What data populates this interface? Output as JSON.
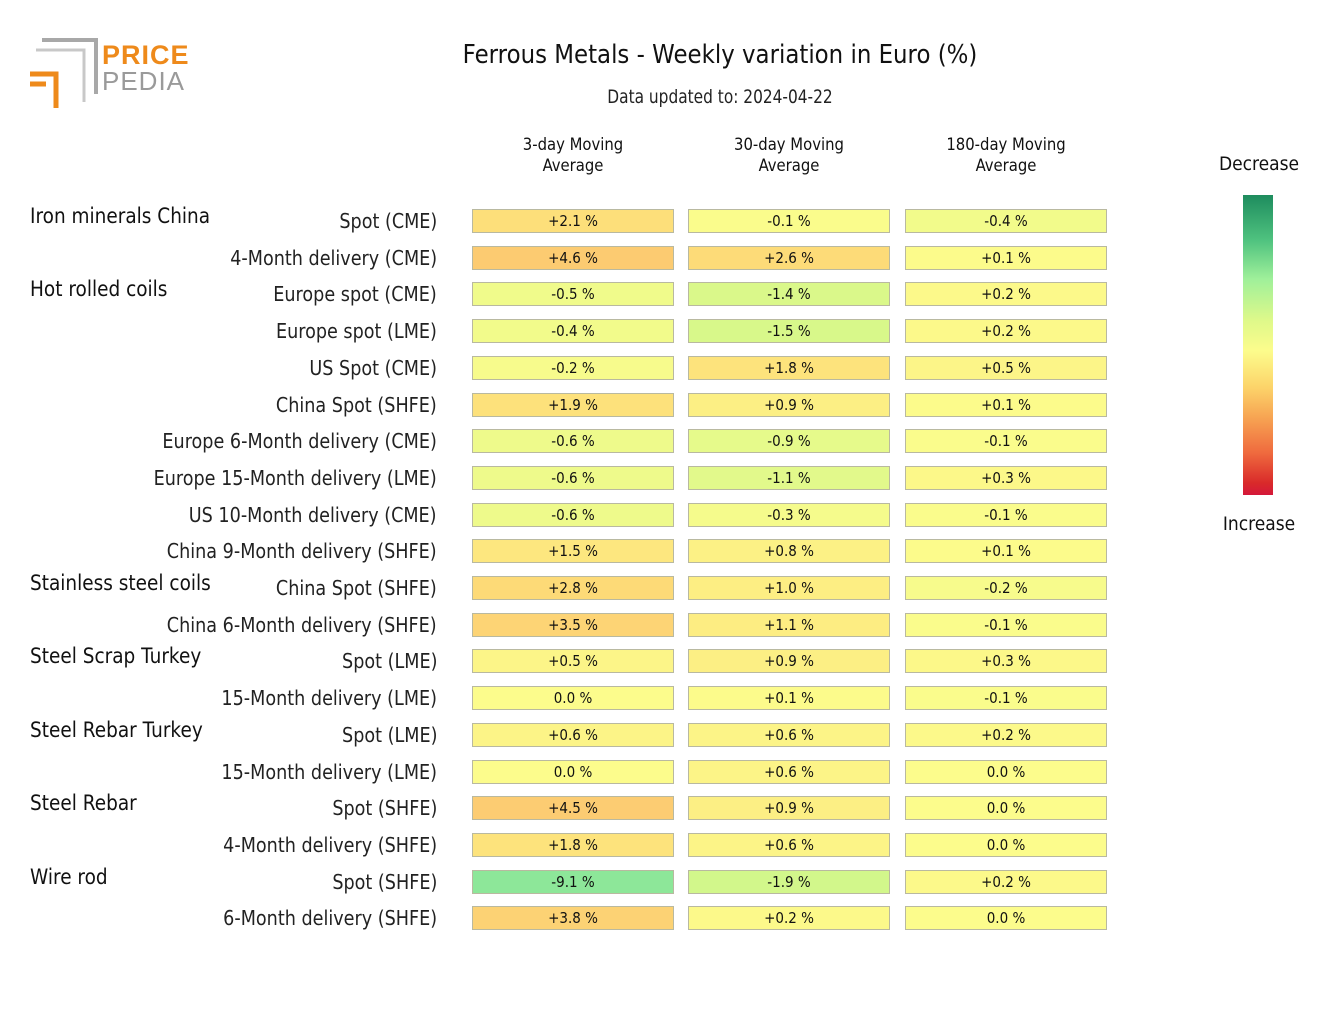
{
  "logo": {
    "line1": "PRICE",
    "line2": "PEDIA"
  },
  "chart_data": {
    "type": "heatmap",
    "title": "Ferrous Metals - Weekly variation in Euro (%)",
    "subtitle": "Data updated to: 2024-04-22",
    "columns": [
      "3-day Moving\nAverage",
      "30-day Moving\nAverage",
      "180-day Moving\nAverage"
    ],
    "legend": {
      "top": "Decrease",
      "bottom": "Increase",
      "placement": "right"
    },
    "colors": {
      "decrease": "#1e8c5e",
      "neutral": "#fcfc8c",
      "increase": "#d4183a"
    },
    "groups": [
      {
        "name": "Iron minerals China",
        "rows": [
          {
            "label": "Spot (CME)",
            "values": [
              2.1,
              -0.1,
              -0.4
            ]
          },
          {
            "label": "4-Month delivery (CME)",
            "values": [
              4.6,
              2.6,
              0.1
            ]
          }
        ]
      },
      {
        "name": "Hot rolled coils",
        "rows": [
          {
            "label": "Europe spot (CME)",
            "values": [
              -0.5,
              -1.4,
              0.2
            ]
          },
          {
            "label": "Europe spot (LME)",
            "values": [
              -0.4,
              -1.5,
              0.2
            ]
          },
          {
            "label": "US Spot (CME)",
            "values": [
              -0.2,
              1.8,
              0.5
            ]
          },
          {
            "label": "China Spot (SHFE)",
            "values": [
              1.9,
              0.9,
              0.1
            ]
          },
          {
            "label": "Europe 6-Month delivery (CME)",
            "values": [
              -0.6,
              -0.9,
              -0.1
            ]
          },
          {
            "label": "Europe 15-Month delivery (LME)",
            "values": [
              -0.6,
              -1.1,
              0.3
            ]
          },
          {
            "label": "US 10-Month delivery (CME)",
            "values": [
              -0.6,
              -0.3,
              -0.1
            ]
          },
          {
            "label": "China 9-Month delivery (SHFE)",
            "values": [
              1.5,
              0.8,
              0.1
            ]
          }
        ]
      },
      {
        "name": "Stainless steel coils",
        "rows": [
          {
            "label": "China Spot (SHFE)",
            "values": [
              2.8,
              1.0,
              -0.2
            ]
          },
          {
            "label": "China 6-Month delivery (SHFE)",
            "values": [
              3.5,
              1.1,
              -0.1
            ]
          }
        ]
      },
      {
        "name": "Steel Scrap Turkey",
        "rows": [
          {
            "label": "Spot (LME)",
            "values": [
              0.5,
              0.9,
              0.3
            ]
          },
          {
            "label": "15-Month delivery (LME)",
            "values": [
              0.0,
              0.1,
              -0.1
            ]
          }
        ]
      },
      {
        "name": "Steel Rebar Turkey",
        "rows": [
          {
            "label": "Spot (LME)",
            "values": [
              0.6,
              0.6,
              0.2
            ]
          },
          {
            "label": "15-Month delivery (LME)",
            "values": [
              0.0,
              0.6,
              0.0
            ]
          }
        ]
      },
      {
        "name": "Steel Rebar",
        "rows": [
          {
            "label": "Spot (SHFE)",
            "values": [
              4.5,
              0.9,
              0.0
            ]
          },
          {
            "label": "4-Month delivery (SHFE)",
            "values": [
              1.8,
              0.6,
              0.0
            ]
          }
        ]
      },
      {
        "name": "Wire rod",
        "rows": [
          {
            "label": "Spot (SHFE)",
            "values": [
              -9.1,
              -1.9,
              0.2
            ]
          },
          {
            "label": "6-Month delivery (SHFE)",
            "values": [
              3.8,
              0.2,
              0.0
            ]
          }
        ]
      }
    ]
  }
}
